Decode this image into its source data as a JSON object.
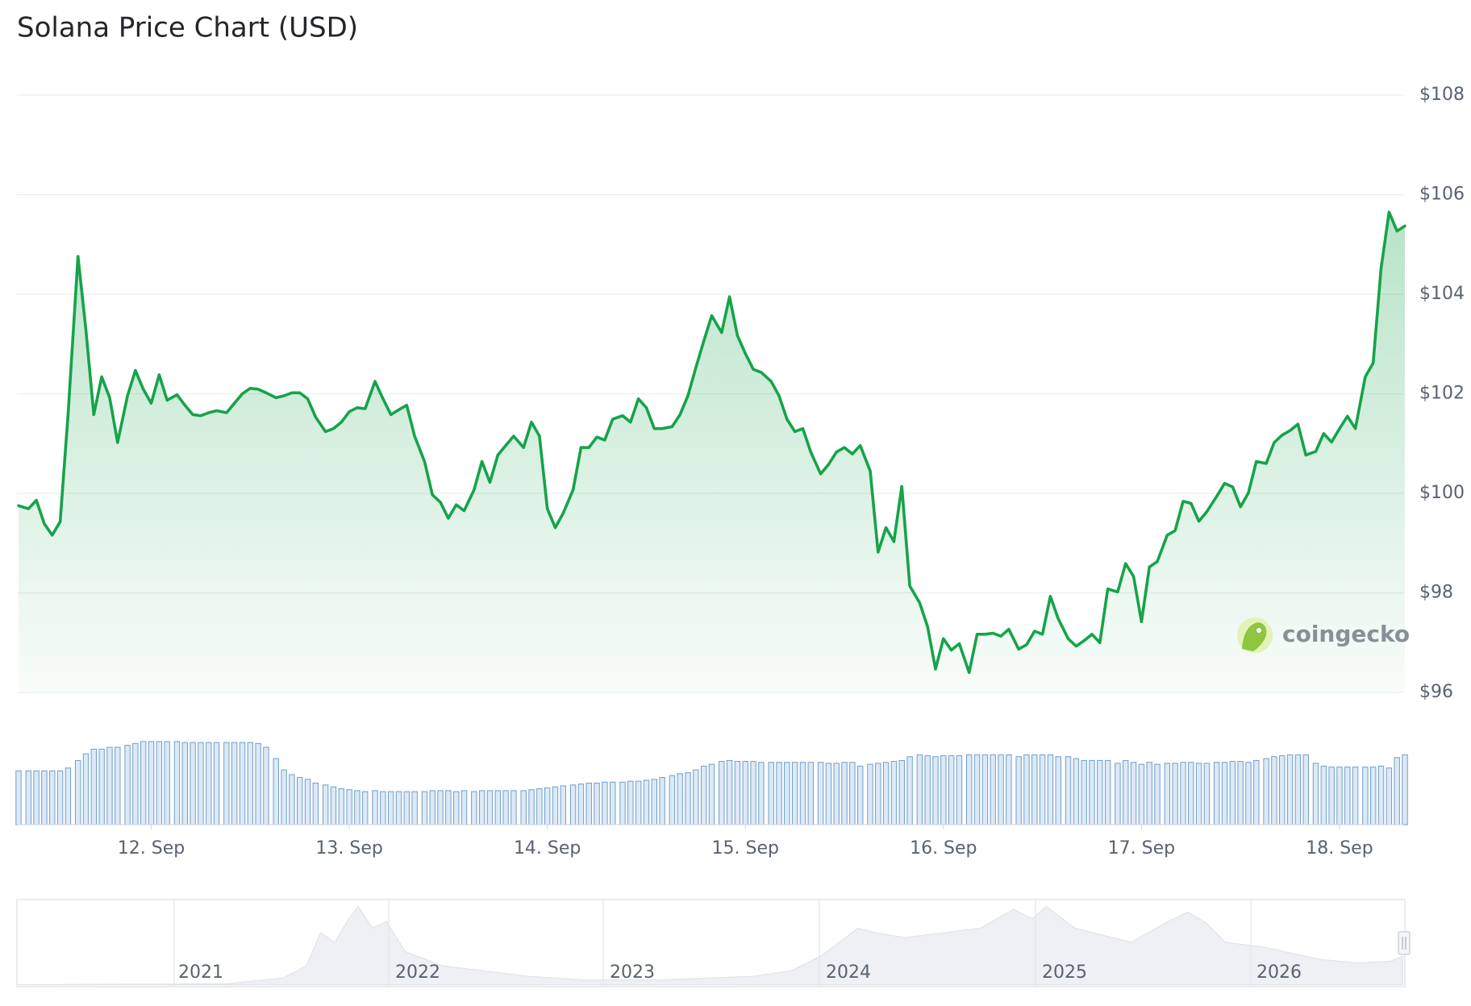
{
  "chart_data": {
    "type": "line",
    "title": "Solana Price Chart (USD)",
    "watermark": "coingecko",
    "x": [
      11.33,
      11.38,
      11.42,
      11.46,
      11.5,
      11.54,
      11.58,
      11.63,
      11.67,
      11.71,
      11.75,
      11.79,
      11.83,
      11.88,
      11.92,
      11.96,
      12.0,
      12.04,
      12.08,
      12.13,
      12.17,
      12.21,
      12.25,
      12.29,
      12.33,
      12.38,
      12.42,
      12.46,
      12.5,
      12.54,
      12.58,
      12.63,
      12.67,
      12.71,
      12.75,
      12.79,
      12.83,
      12.88,
      12.92,
      12.96,
      13.0,
      13.04,
      13.08,
      13.13,
      13.17,
      13.21,
      13.25,
      13.29,
      13.33,
      13.38,
      13.42,
      13.46,
      13.5,
      13.54,
      13.58,
      13.63,
      13.67,
      13.71,
      13.75,
      13.79,
      13.83,
      13.88,
      13.92,
      13.96,
      14.0,
      14.04,
      14.08,
      14.13,
      14.17,
      14.21,
      14.25,
      14.29,
      14.33,
      14.38,
      14.42,
      14.46,
      14.5,
      14.54,
      14.58,
      14.63,
      14.67,
      14.71,
      14.75,
      14.79,
      14.83,
      14.88,
      14.92,
      14.96,
      15.0,
      15.04,
      15.08,
      15.13,
      15.17,
      15.21,
      15.25,
      15.29,
      15.33,
      15.38,
      15.42,
      15.46,
      15.5,
      15.54,
      15.58,
      15.63,
      15.67,
      15.71,
      15.75,
      15.79,
      15.83,
      15.88,
      15.92,
      15.96,
      16.0,
      16.04,
      16.08,
      16.13,
      16.17,
      16.21,
      16.25,
      16.29,
      16.33,
      16.38,
      16.42,
      16.46,
      16.5,
      16.54,
      16.58,
      16.63,
      16.67,
      16.71,
      16.75,
      16.79,
      16.83,
      16.88,
      16.92,
      16.96,
      17.0,
      17.04,
      17.08,
      17.13,
      17.17,
      17.21,
      17.25,
      17.29,
      17.33,
      17.38,
      17.42,
      17.46,
      17.5,
      17.54,
      17.58,
      17.63,
      17.67,
      17.71,
      17.75,
      17.79,
      17.83,
      17.88,
      17.92,
      17.96,
      18.0,
      18.04,
      18.08,
      18.13,
      18.17,
      18.21,
      18.25,
      18.29,
      18.33
    ],
    "xlim": [
      11.33,
      18.33
    ],
    "xticks": [
      {
        "value": 12,
        "label": "12. Sep"
      },
      {
        "value": 13,
        "label": "13. Sep"
      },
      {
        "value": 14,
        "label": "14. Sep"
      },
      {
        "value": 15,
        "label": "15. Sep"
      },
      {
        "value": 16,
        "label": "16. Sep"
      },
      {
        "value": 17,
        "label": "17. Sep"
      },
      {
        "value": 18,
        "label": "18. Sep"
      }
    ],
    "ylim": [
      96,
      108
    ],
    "yticks": [
      {
        "value": 96,
        "label": "$96"
      },
      {
        "value": 98,
        "label": "$98"
      },
      {
        "value": 100,
        "label": "$100"
      },
      {
        "value": 102,
        "label": "$102"
      },
      {
        "value": 104,
        "label": "$104"
      },
      {
        "value": 106,
        "label": "$106"
      },
      {
        "value": 108,
        "label": "$108"
      }
    ],
    "grid": true,
    "series": [
      {
        "color": "#16a34a",
        "values": [
          99.75,
          99.69,
          99.86,
          99.39,
          99.16,
          99.43,
          101.58,
          104.76,
          103.29,
          101.58,
          102.34,
          101.92,
          101.02,
          101.96,
          102.47,
          102.09,
          101.81,
          102.38,
          101.87,
          101.98,
          101.77,
          101.58,
          101.56,
          101.62,
          101.66,
          101.62,
          101.81,
          102.0,
          102.11,
          102.09,
          102.02,
          101.92,
          101.96,
          102.02,
          102.02,
          101.9,
          101.53,
          101.24,
          101.3,
          101.43,
          101.64,
          101.72,
          101.7,
          102.25,
          101.9,
          101.58,
          101.68,
          101.77,
          101.15,
          100.64,
          99.97,
          99.82,
          99.5,
          99.77,
          99.65,
          100.07,
          100.64,
          100.22,
          100.77,
          100.96,
          101.15,
          100.92,
          101.43,
          101.15,
          99.69,
          99.31,
          99.6,
          100.07,
          100.92,
          100.92,
          101.13,
          101.07,
          101.49,
          101.56,
          101.43,
          101.9,
          101.72,
          101.3,
          101.3,
          101.34,
          101.58,
          101.96,
          102.53,
          103.06,
          103.57,
          103.23,
          103.95,
          103.17,
          102.81,
          102.49,
          102.43,
          102.25,
          101.96,
          101.49,
          101.24,
          101.3,
          100.83,
          100.39,
          100.58,
          100.83,
          100.92,
          100.79,
          100.96,
          100.45,
          98.82,
          99.31,
          99.03,
          100.14,
          98.14,
          97.8,
          97.32,
          96.47,
          97.08,
          96.85,
          96.98,
          96.4,
          97.17,
          97.17,
          97.19,
          97.13,
          97.27,
          96.87,
          96.96,
          97.23,
          97.17,
          97.93,
          97.48,
          97.08,
          96.93,
          97.04,
          97.17,
          97.0,
          98.08,
          98.02,
          98.59,
          98.33,
          97.42,
          98.52,
          98.63,
          99.16,
          99.25,
          99.84,
          99.8,
          99.44,
          99.63,
          99.94,
          100.2,
          100.13,
          99.73,
          100.01,
          100.64,
          100.6,
          101.02,
          101.17,
          101.26,
          101.39,
          100.77,
          100.84,
          101.2,
          101.03,
          101.3,
          101.55,
          101.3,
          102.34,
          102.62,
          104.52,
          105.65,
          105.27,
          105.37
        ]
      }
    ],
    "volume": {
      "color": "#dce9f6",
      "stroke": "#6f9fcb",
      "values": [
        57,
        57,
        57,
        57,
        57,
        57,
        60,
        68,
        75,
        80,
        80,
        82,
        82,
        84,
        86,
        88,
        88,
        88,
        88,
        88,
        87,
        87,
        87,
        87,
        87,
        87,
        87,
        87,
        87,
        86,
        82,
        70,
        58,
        53,
        50,
        48,
        44,
        42,
        40,
        38,
        37,
        36,
        35,
        36,
        35,
        35,
        35,
        35,
        35,
        35,
        36,
        36,
        36,
        35,
        36,
        35,
        36,
        36,
        36,
        36,
        36,
        36,
        37,
        38,
        39,
        40,
        41,
        42,
        43,
        44,
        44,
        45,
        45,
        45,
        46,
        46,
        47,
        48,
        50,
        52,
        54,
        55,
        58,
        62,
        64,
        67,
        68,
        67,
        67,
        67,
        66,
        66,
        66,
        66,
        66,
        66,
        66,
        66,
        65,
        65,
        66,
        66,
        62,
        64,
        65,
        66,
        67,
        68,
        72,
        74,
        73,
        72,
        73,
        73,
        73,
        74,
        74,
        74,
        74,
        74,
        74,
        72,
        74,
        74,
        74,
        74,
        72,
        72,
        70,
        68,
        68,
        68,
        68,
        65,
        68,
        66,
        64,
        66,
        64,
        65,
        65,
        66,
        66,
        65,
        65,
        66,
        66,
        67,
        67,
        66,
        68,
        70,
        72,
        73,
        74,
        74,
        74,
        65,
        62,
        61,
        61,
        61,
        61,
        61,
        61,
        62,
        60,
        71,
        74
      ]
    },
    "navigator_labels": [
      "2021",
      "2022",
      "2023",
      "2024",
      "2025",
      "2026"
    ]
  }
}
